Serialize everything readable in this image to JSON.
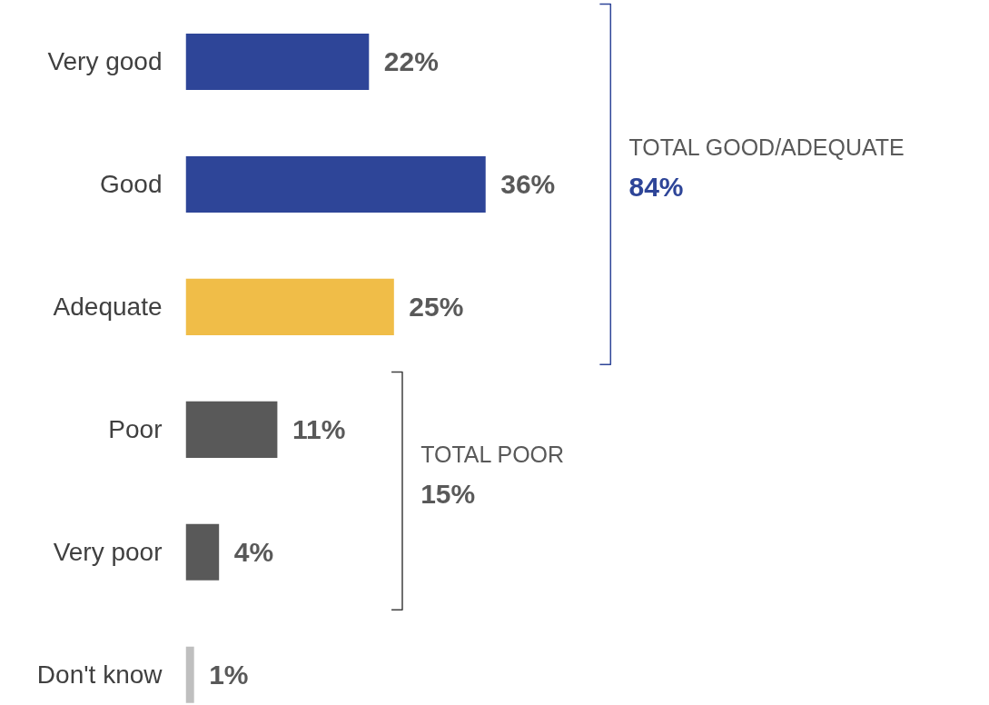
{
  "chart_data": {
    "type": "bar",
    "orientation": "horizontal",
    "categories": [
      "Very good",
      "Good",
      "Adequate",
      "Poor",
      "Very poor",
      "Don't know"
    ],
    "values": [
      22,
      36,
      25,
      11,
      4,
      1
    ],
    "colors": [
      "#2e4598",
      "#2e4598",
      "#f0bd48",
      "#595959",
      "#595959",
      "#bfbfbf"
    ],
    "value_labels": [
      "22%",
      "36%",
      "25%",
      "11%",
      "4%",
      "1%"
    ],
    "annotations": [
      "TOTAL GOOD/ADEQUATE\n84%",
      "TOTAL POOR\n15%"
    ],
    "grid": false
  }
}
